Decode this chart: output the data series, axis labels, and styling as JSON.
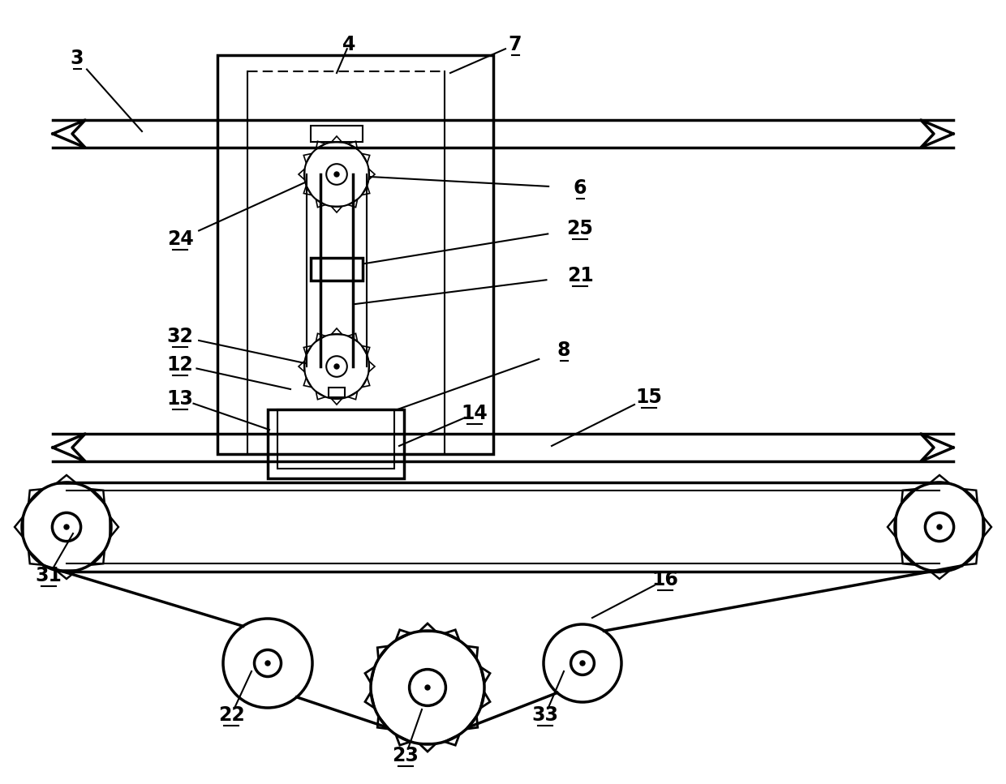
{
  "bg_color": "#ffffff",
  "line_color": "#000000",
  "lw": 1.5,
  "lw2": 2.5,
  "lw3": 3.5,
  "fig_width": 12.4,
  "fig_height": 9.67
}
